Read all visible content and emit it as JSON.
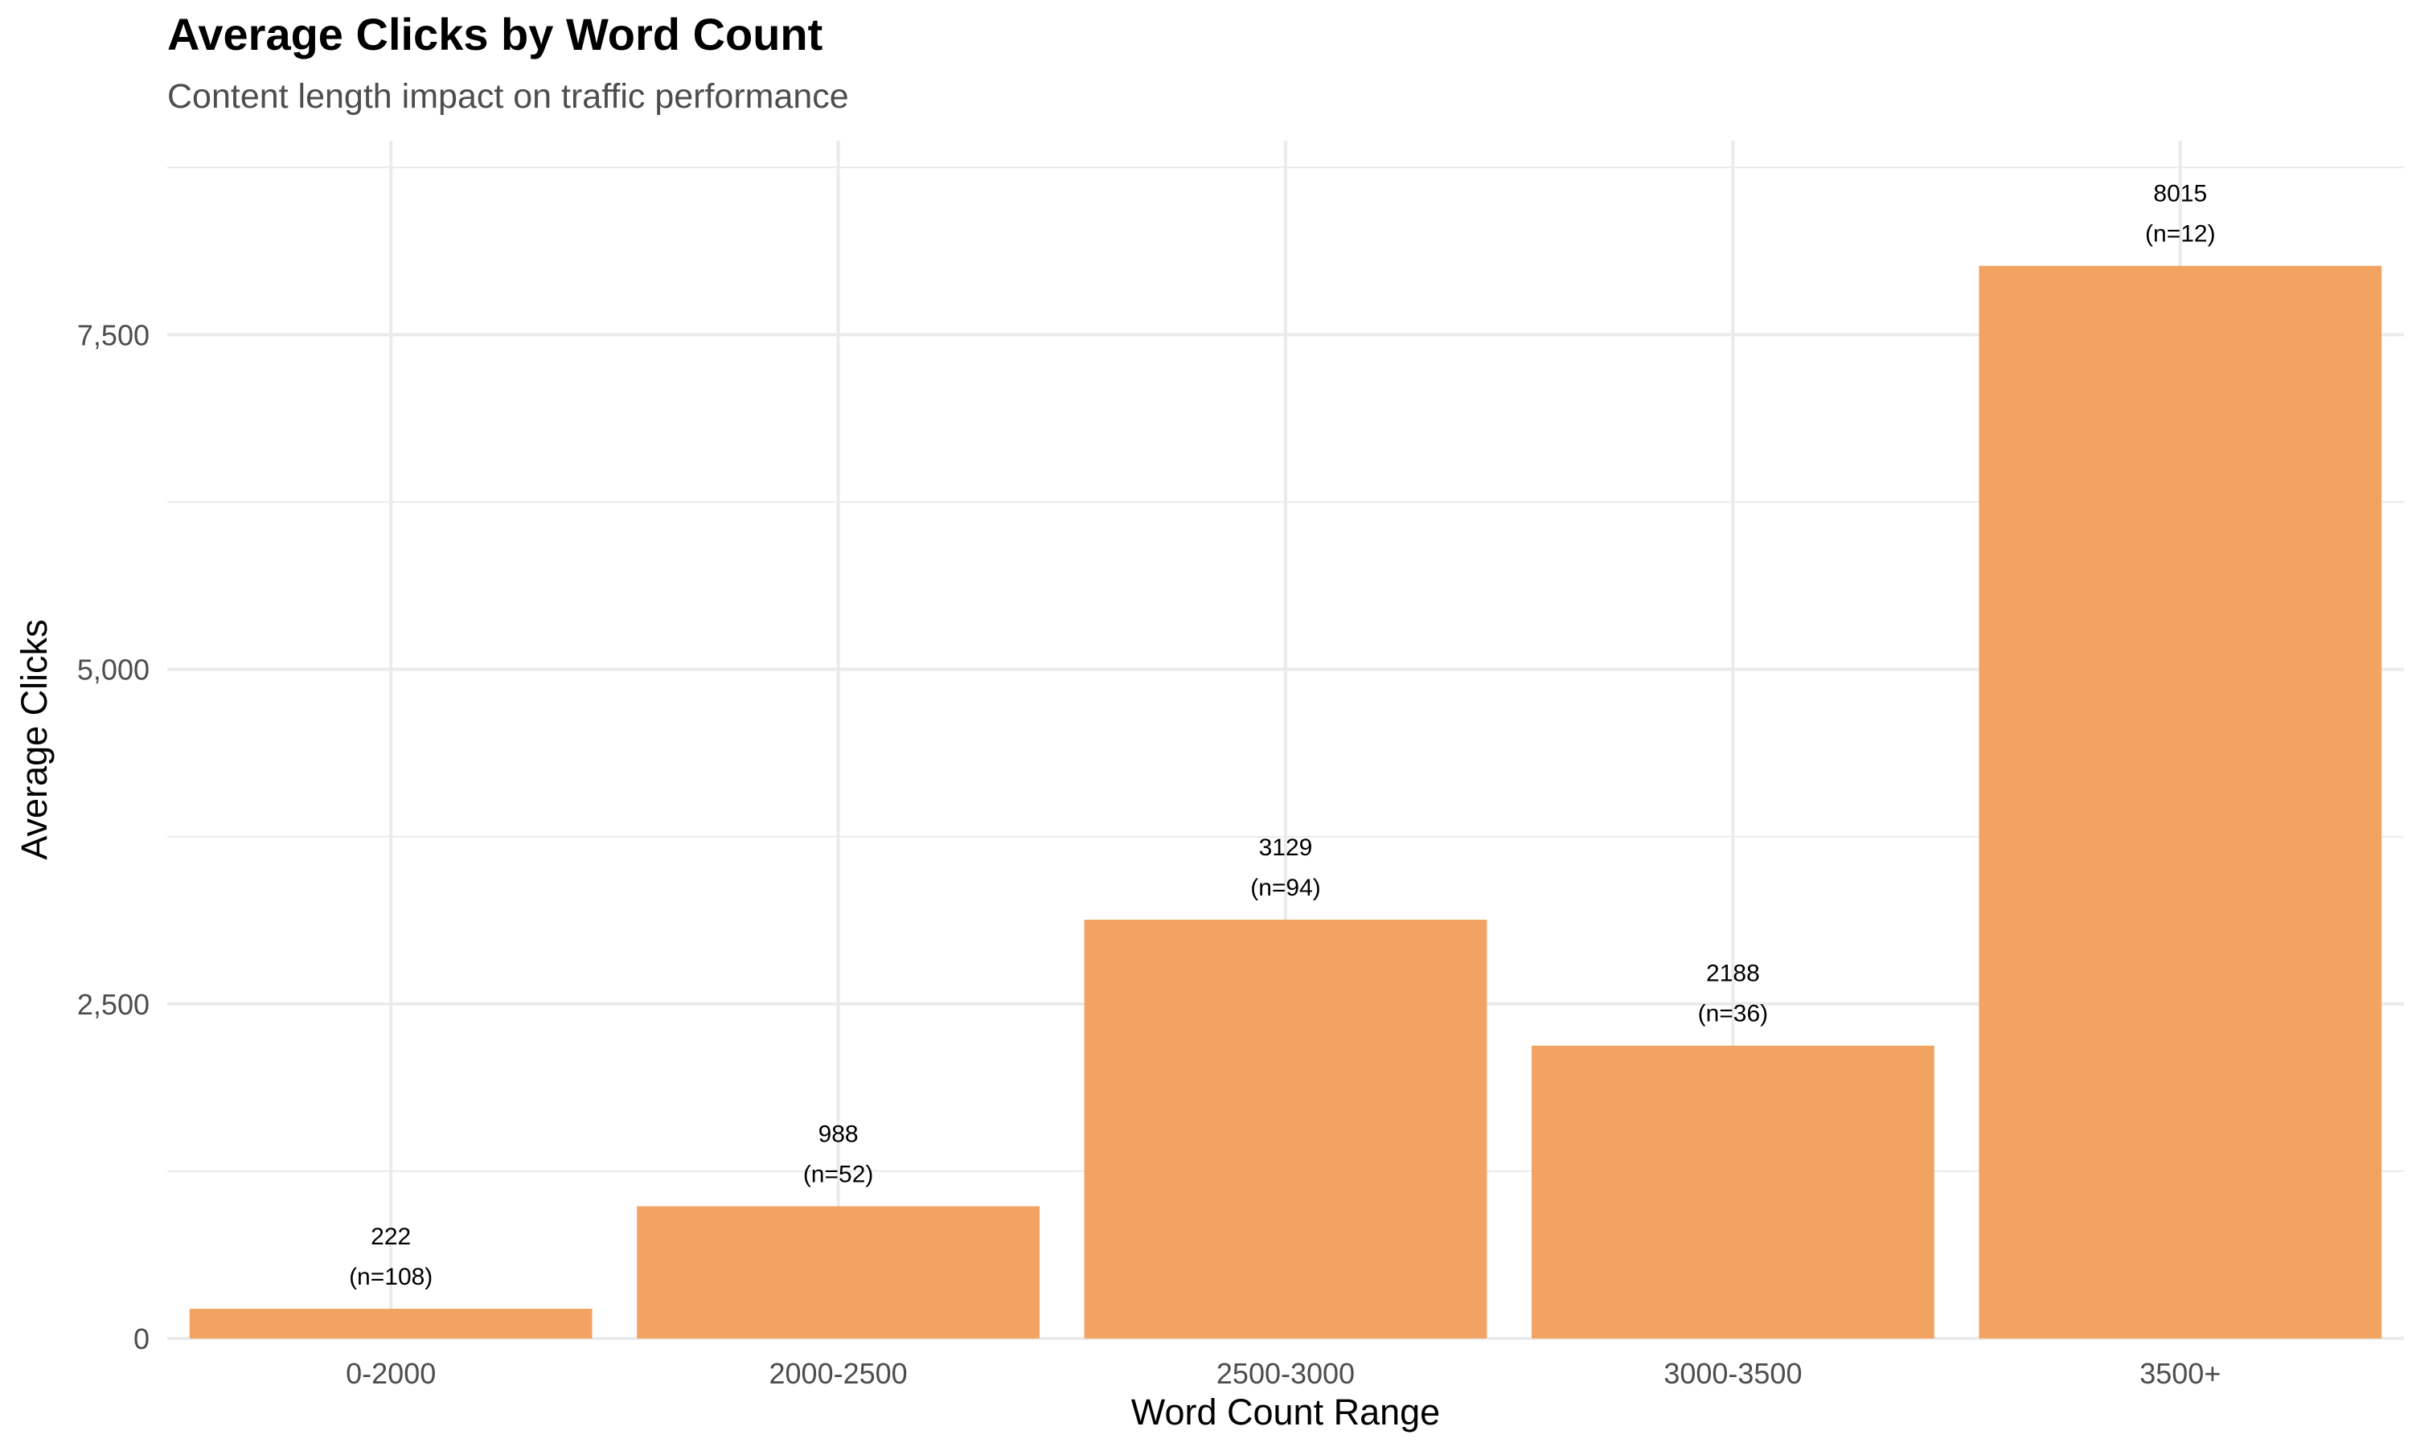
{
  "chart_data": {
    "type": "bar",
    "title": "Average Clicks by Word Count",
    "subtitle": "Content length impact on traffic performance",
    "xlabel": "Word Count Range",
    "ylabel": "Average Clicks",
    "categories": [
      "0-2000",
      "2000-2500",
      "2500-3000",
      "3000-3500",
      "3500+"
    ],
    "values": [
      222,
      988,
      3129,
      2188,
      8015
    ],
    "value_labels": [
      "222",
      "988",
      "3129",
      "2188",
      "8015"
    ],
    "count_labels": [
      "(n=108)",
      "(n=52)",
      "(n=94)",
      "(n=36)",
      "(n=12)"
    ],
    "ylim": [
      0,
      8950
    ],
    "y_ticks": [
      0,
      2500,
      5000,
      7500
    ],
    "y_tick_labels": [
      "0",
      "2,500",
      "5,000",
      "7,500"
    ],
    "grid": true,
    "bar_color": "#F2A361",
    "grid_color": "#ebebeb"
  }
}
